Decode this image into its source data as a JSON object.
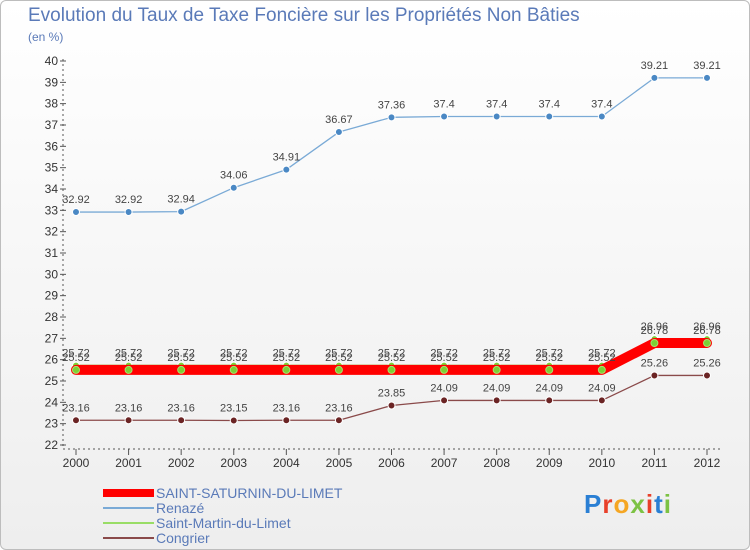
{
  "header": {
    "title": "Evolution du Taux de Taxe Foncière sur les Propriétés Non Bâties",
    "unit": "(en %)"
  },
  "brand": {
    "logo_text": "Proxiti"
  },
  "chart_data": {
    "type": "line",
    "title": "Evolution du Taux de Taxe Foncière sur les Propriétés Non Bâties",
    "ylabel": "(en %)",
    "xlabel": "",
    "ylim": [
      22,
      40
    ],
    "yticks": [
      22,
      23,
      24,
      25,
      26,
      27,
      28,
      29,
      30,
      31,
      32,
      33,
      34,
      35,
      36,
      37,
      38,
      39,
      40
    ],
    "grid": false,
    "legend_position": "bottom-left",
    "x": [
      "2000",
      "2001",
      "2002",
      "2003",
      "2004",
      "2005",
      "2006",
      "2007",
      "2008",
      "2009",
      "2010",
      "2011",
      "2012"
    ],
    "series": [
      {
        "name": "SAINT-SATURNIN-DU-LIMET",
        "color": "#ff0000",
        "marker_color": "#7cd033",
        "values": [
          25.52,
          25.52,
          25.52,
          25.52,
          25.52,
          25.52,
          25.52,
          25.52,
          25.52,
          25.52,
          25.52,
          26.78,
          26.78
        ],
        "labels": [
          "25.52",
          "25.52",
          "25.52",
          "25.52",
          "25.52",
          "25.52",
          "25.52",
          "25.52",
          "25.52",
          "25.52",
          "25.52",
          "26.78",
          "26.78"
        ]
      },
      {
        "name": "Renazé",
        "color": "#7aaad6",
        "marker_color": "#4a88c4",
        "values": [
          32.92,
          32.92,
          32.94,
          34.06,
          34.91,
          36.67,
          37.36,
          37.4,
          37.4,
          37.4,
          37.4,
          39.21,
          39.21
        ],
        "labels": [
          "32.92",
          "32.92",
          "32.94",
          "34.06",
          "34.91",
          "36.67",
          "37.36",
          "37.4",
          "37.4",
          "37.4",
          "37.4",
          "39.21",
          "39.21"
        ]
      },
      {
        "name": "Saint-Martin-du-Limet",
        "color": "#99dd66",
        "marker_color": "#7cd033",
        "values": [
          25.72,
          25.72,
          25.72,
          25.72,
          25.72,
          25.72,
          25.72,
          25.72,
          25.72,
          25.72,
          25.72,
          26.96,
          26.96
        ],
        "labels": [
          "25.72",
          "25.72",
          "25.72",
          "25.72",
          "25.72",
          "25.72",
          "25.72",
          "25.72",
          "25.72",
          "25.72",
          "25.72",
          "26.96",
          "26.96"
        ]
      },
      {
        "name": "Congrier",
        "color": "#8a4a4a",
        "marker_color": "#6b2424",
        "values": [
          23.16,
          23.16,
          23.16,
          23.15,
          23.16,
          23.16,
          23.85,
          24.09,
          24.09,
          24.09,
          24.09,
          25.26,
          25.26
        ],
        "labels": [
          "23.16",
          "23.16",
          "23.16",
          "23.15",
          "23.16",
          "23.16",
          "23.85",
          "24.09",
          "24.09",
          "24.09",
          "24.09",
          "25.26",
          "25.26"
        ]
      }
    ]
  }
}
